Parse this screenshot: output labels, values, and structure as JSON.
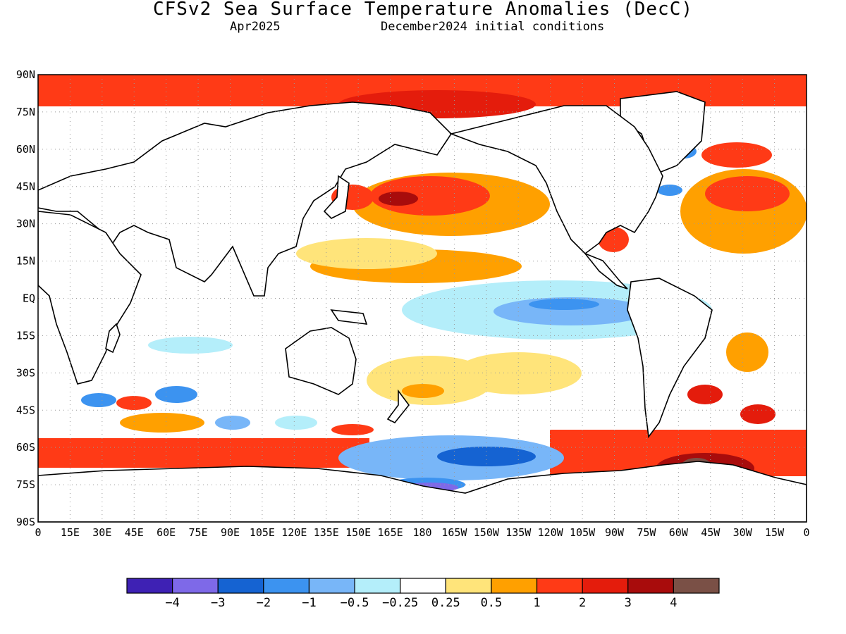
{
  "title": "CFSv2 Sea Surface Temperature Anomalies (DecC)",
  "subtitle_left": "Apr2025",
  "subtitle_right": "December2024 initial conditions",
  "map": {
    "lon_labels": [
      "0",
      "15E",
      "30E",
      "45E",
      "60E",
      "75E",
      "90E",
      "105E",
      "120E",
      "135E",
      "150E",
      "165E",
      "180",
      "165W",
      "150W",
      "135W",
      "120W",
      "105W",
      "90W",
      "75W",
      "60W",
      "45W",
      "30W",
      "15W",
      "0"
    ],
    "lat_labels": [
      "90N",
      "75N",
      "60N",
      "45N",
      "30N",
      "15N",
      "EQ",
      "15S",
      "30S",
      "45S",
      "60S",
      "75S",
      "90S"
    ]
  },
  "colorbar": {
    "colors": [
      "#3e21b4",
      "#7e69e8",
      "#1563d2",
      "#3c93f0",
      "#78b6f8",
      "#b4eefa",
      "#ffffff",
      "#ffe47a",
      "#ffa000",
      "#ff3a16",
      "#e41c0c",
      "#a80c0c",
      "#7a5046"
    ],
    "labels": [
      "−4",
      "−3",
      "−2",
      "−1",
      "−0.5",
      "−0.25",
      "0.25",
      "0.5",
      "1",
      "2",
      "3",
      "4"
    ]
  }
}
